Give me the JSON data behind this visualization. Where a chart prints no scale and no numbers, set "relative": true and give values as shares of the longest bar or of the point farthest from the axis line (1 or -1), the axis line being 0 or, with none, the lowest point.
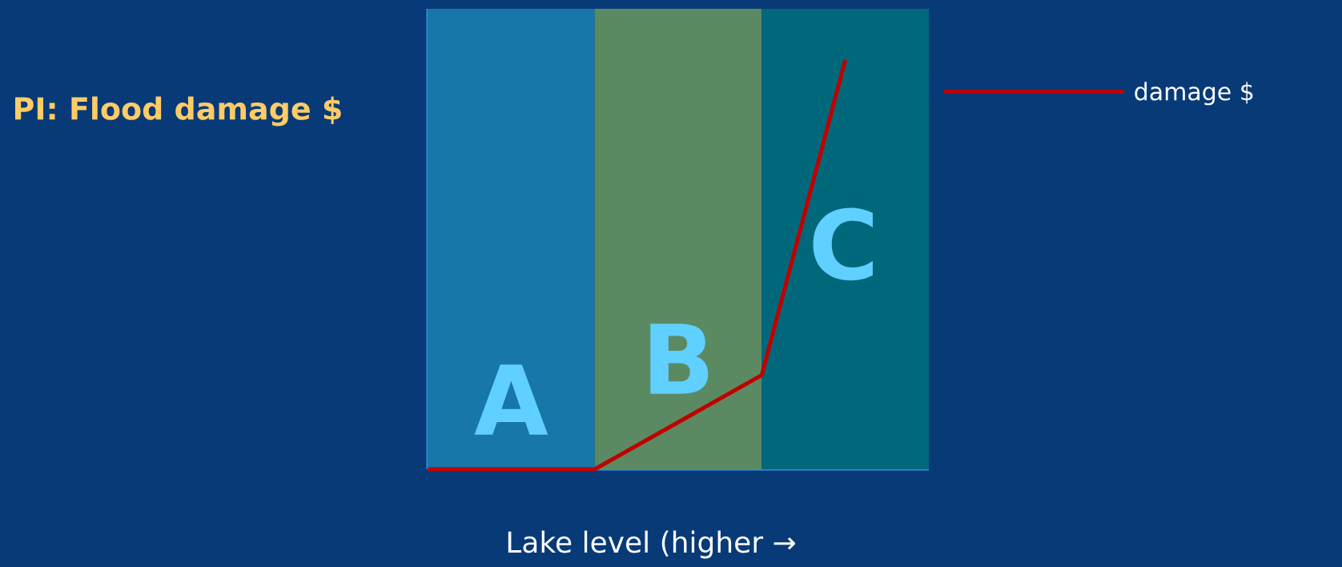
{
  "chart_data": {
    "type": "line",
    "title": "PI:  Flood damage $",
    "xlabel": "Lake level (higher →",
    "relative": true,
    "legend": "right",
    "categories": [
      null,
      null,
      null,
      null,
      null,
      null,
      null
    ],
    "series": [
      {
        "name": "damage $",
        "color": "#c00000",
        "values": [
          0.0,
          0.0,
          0.0,
          0.115,
          0.23,
          1.0,
          null
        ]
      }
    ],
    "annotations": [
      "A",
      "B",
      "C"
    ]
  }
}
